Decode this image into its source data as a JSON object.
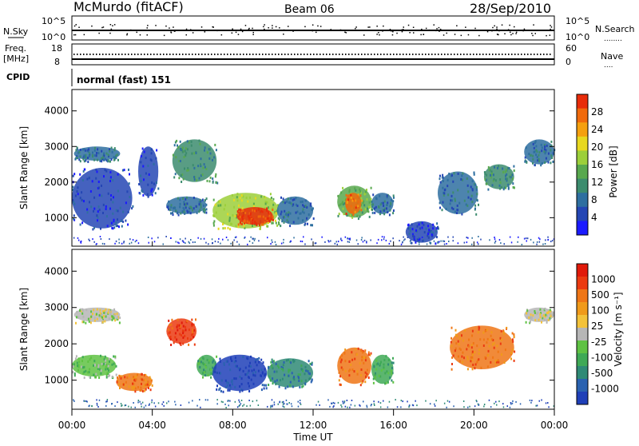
{
  "header": {
    "station": "McMurdo (fitACF)",
    "beam": "Beam 06",
    "date": "28/Sep/2010"
  },
  "noise_panel": {
    "left_label": "N.Sky",
    "right_label": "N.Search",
    "left_ticks": [
      "10^5",
      "10^0"
    ],
    "right_ticks": [
      "10^5",
      "10^0"
    ]
  },
  "freq_panel": {
    "left_label_1": "Freq.",
    "left_label_2": "[MHz]",
    "right_label": "Nave",
    "left_ticks": [
      "18",
      "8"
    ],
    "right_ticks": [
      "60",
      "0"
    ]
  },
  "cpid_panel": {
    "label": "CPID",
    "text": "normal (fast) 151"
  },
  "x_axis": {
    "label": "Time UT",
    "ticks": [
      "00:00",
      "04:00",
      "08:00",
      "12:00",
      "16:00",
      "20:00",
      "00:00"
    ]
  },
  "power_panel": {
    "ylabel": "Slant Range [km]",
    "yticks": [
      "4000",
      "3000",
      "2000",
      "1000"
    ],
    "colorbar_label": "Power [dB]",
    "colorbar_ticks": [
      "28",
      "24",
      "20",
      "16",
      "12",
      "8",
      "4"
    ],
    "colors": [
      "#1a1aff",
      "#2446b4",
      "#2e6fa0",
      "#3c8c6e",
      "#58a84e",
      "#9ccf3a",
      "#e8d81f",
      "#f5a00f",
      "#f06a0c",
      "#e82c0a"
    ]
  },
  "velocity_panel": {
    "ylabel": "Slant Range [km]",
    "yticks": [
      "4000",
      "3000",
      "2000",
      "1000"
    ],
    "colorbar_label": "Velocity [m s⁻¹]",
    "colorbar_ticks": [
      "1000",
      "500",
      "100",
      "25",
      "-25",
      "-100",
      "-500",
      "-1000"
    ],
    "colors": [
      "#1f3fb8",
      "#2a62b0",
      "#2f8a76",
      "#3fa956",
      "#5fc243",
      "#b6b6b6",
      "#f3c23a",
      "#f09a1a",
      "#ef7616",
      "#eb3a10",
      "#e11a0a"
    ]
  },
  "chart_data": {
    "type": "heatmap",
    "title": "McMurdo (fitACF)",
    "xlabel": "Time UT",
    "ylabel": "Slant Range [km]",
    "x_range_hours": [
      0,
      24
    ],
    "y_range_km": [
      200,
      4600
    ],
    "power_regions": [
      {
        "t0": 0.1,
        "t1": 2.4,
        "r0": 2600,
        "r1": 3000,
        "level": 2
      },
      {
        "t0": 0.0,
        "t1": 3.0,
        "r0": 700,
        "r1": 2400,
        "level": 1
      },
      {
        "t0": 3.3,
        "t1": 4.3,
        "r0": 1600,
        "r1": 3000,
        "level": 1
      },
      {
        "t0": 4.7,
        "t1": 6.7,
        "r0": 1100,
        "r1": 1600,
        "level": 2
      },
      {
        "t0": 5.0,
        "t1": 7.2,
        "r0": 2000,
        "r1": 3200,
        "level": 3
      },
      {
        "t0": 7.0,
        "t1": 10.3,
        "r0": 700,
        "r1": 1700,
        "level": 5
      },
      {
        "t0": 8.2,
        "t1": 10.0,
        "r0": 800,
        "r1": 1300,
        "level": 9
      },
      {
        "t0": 10.2,
        "t1": 12.0,
        "r0": 800,
        "r1": 1600,
        "level": 2
      },
      {
        "t0": 13.2,
        "t1": 14.9,
        "r0": 1000,
        "r1": 1900,
        "level": 4
      },
      {
        "t0": 13.6,
        "t1": 14.4,
        "r0": 1100,
        "r1": 1700,
        "level": 8
      },
      {
        "t0": 14.9,
        "t1": 16.0,
        "r0": 1100,
        "r1": 1700,
        "level": 2
      },
      {
        "t0": 16.6,
        "t1": 18.2,
        "r0": 300,
        "r1": 900,
        "level": 1
      },
      {
        "t0": 18.2,
        "t1": 20.2,
        "r0": 1100,
        "r1": 2300,
        "level": 2
      },
      {
        "t0": 20.5,
        "t1": 22.0,
        "r0": 1800,
        "r1": 2500,
        "level": 3
      },
      {
        "t0": 22.5,
        "t1": 24.0,
        "r0": 2500,
        "r1": 3200,
        "level": 2
      }
    ],
    "velocity_regions": [
      {
        "t0": 0.1,
        "t1": 2.4,
        "r0": 2600,
        "r1": 3000,
        "level": 5
      },
      {
        "t0": 0.0,
        "t1": 2.2,
        "r0": 1100,
        "r1": 1700,
        "level": 4
      },
      {
        "t0": 2.2,
        "t1": 4.0,
        "r0": 700,
        "r1": 1200,
        "level": 8
      },
      {
        "t0": 4.7,
        "t1": 6.2,
        "r0": 2000,
        "r1": 2700,
        "level": 9
      },
      {
        "t0": 6.2,
        "t1": 7.2,
        "r0": 1100,
        "r1": 1700,
        "level": 3
      },
      {
        "t0": 7.0,
        "t1": 9.7,
        "r0": 700,
        "r1": 1700,
        "level": 0
      },
      {
        "t0": 9.7,
        "t1": 12.0,
        "r0": 800,
        "r1": 1600,
        "level": 2
      },
      {
        "t0": 13.2,
        "t1": 14.9,
        "r0": 900,
        "r1": 1900,
        "level": 8
      },
      {
        "t0": 14.9,
        "t1": 16.0,
        "r0": 900,
        "r1": 1700,
        "level": 3
      },
      {
        "t0": 18.8,
        "t1": 22.0,
        "r0": 1300,
        "r1": 2500,
        "level": 8
      },
      {
        "t0": 22.5,
        "t1": 24.0,
        "r0": 2600,
        "r1": 3000,
        "level": 5
      }
    ]
  }
}
